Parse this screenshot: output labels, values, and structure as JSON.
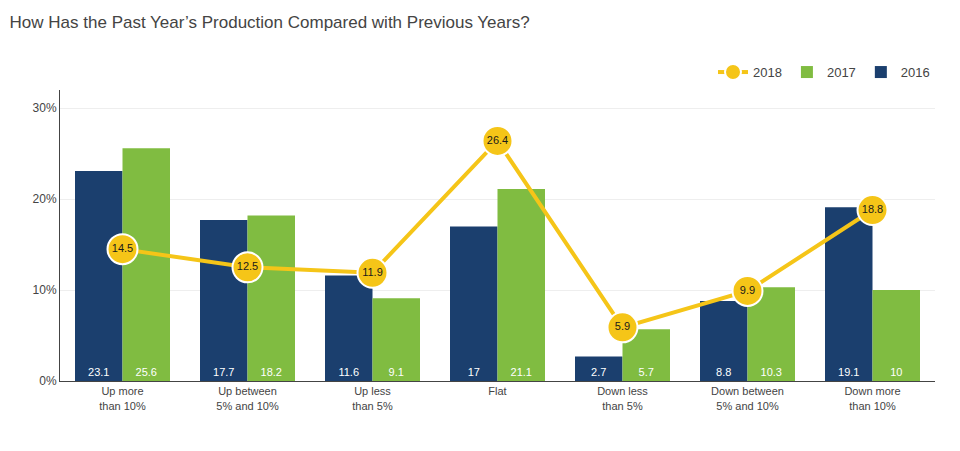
{
  "chart_data": {
    "type": "bar",
    "title": "How Has the Past Year’s Production Compared with Previous Years?",
    "categories": [
      "Up more\nthan 10%",
      "Up between\n5% and 10%",
      "Up less\nthan 5%",
      "Flat",
      "Down less\nthan 5%",
      "Down between\n5% and 10%",
      "Down more\nthan 10%"
    ],
    "series": [
      {
        "name": "2016",
        "type": "bar",
        "color": "#1B3F6E",
        "values": [
          23.1,
          17.7,
          11.6,
          17.0,
          2.7,
          8.8,
          19.1
        ]
      },
      {
        "name": "2017",
        "type": "bar",
        "color": "#80BC41",
        "values": [
          25.6,
          18.2,
          9.1,
          21.1,
          5.7,
          10.3,
          10.0
        ]
      },
      {
        "name": "2018",
        "type": "line",
        "color": "#F5C518",
        "marker": "circle",
        "values": [
          14.5,
          12.5,
          11.9,
          26.4,
          5.9,
          9.9,
          18.8
        ]
      }
    ],
    "ylim": [
      0,
      32
    ],
    "yticks": [
      {
        "value": 0,
        "label": "0%"
      },
      {
        "value": 10,
        "label": "10%"
      },
      {
        "value": 20,
        "label": "20%"
      },
      {
        "value": 30,
        "label": "30%"
      }
    ],
    "grid": true,
    "legend": "upper right",
    "data_labels": true
  }
}
